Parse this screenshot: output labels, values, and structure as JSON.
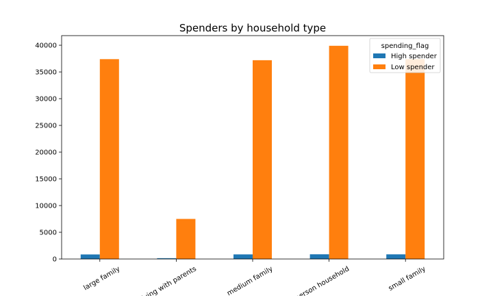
{
  "chart_data": {
    "type": "bar",
    "title": "Spenders by household type",
    "xlabel": "",
    "ylabel": "",
    "categories": [
      "large family",
      "living with parents",
      "medium family",
      "one person household",
      "small family"
    ],
    "series": [
      {
        "name": "High spender",
        "color": "#1f77b4",
        "values": [
          850,
          150,
          860,
          880,
          870
        ]
      },
      {
        "name": "Low spender",
        "color": "#ff7f0e",
        "values": [
          37400,
          7500,
          37200,
          39900,
          37400
        ]
      }
    ],
    "ylim": [
      0,
      41800
    ],
    "yticks": [
      0,
      5000,
      10000,
      15000,
      20000,
      25000,
      30000,
      35000,
      40000
    ],
    "legend": {
      "title": "spending_flag",
      "position": "top-right"
    },
    "grid": false
  }
}
